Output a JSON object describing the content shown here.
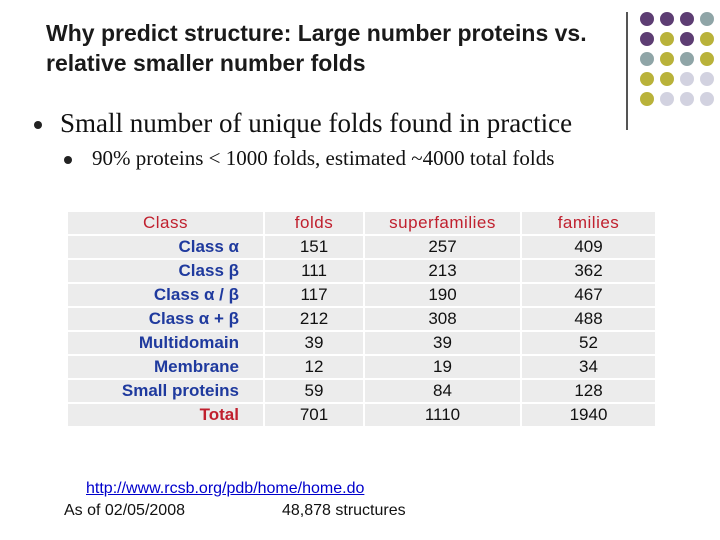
{
  "title": "Why predict structure: Large number proteins vs. relative smaller number folds",
  "bullets": {
    "level1": "Small number of unique folds found in practice",
    "level2": "90% proteins < 1000 folds, estimated ~4000 total folds"
  },
  "table": {
    "headers": [
      "Class",
      "folds",
      "superfamilies",
      "families"
    ],
    "rows": [
      {
        "class": "Class α",
        "folds": "151",
        "superfamilies": "257",
        "families": "409"
      },
      {
        "class": "Class β",
        "folds": "111",
        "superfamilies": "213",
        "families": "362"
      },
      {
        "class": "Class α / β",
        "folds": "117",
        "superfamilies": "190",
        "families": "467"
      },
      {
        "class": "Class α + β",
        "folds": "212",
        "superfamilies": "308",
        "families": "488"
      },
      {
        "class": "Multidomain",
        "folds": "39",
        "superfamilies": "39",
        "families": "52"
      },
      {
        "class": "Membrane",
        "folds": "12",
        "superfamilies": "19",
        "families": "34"
      },
      {
        "class": "Small proteins",
        "folds": "59",
        "superfamilies": "84",
        "families": "128"
      },
      {
        "class": "Total",
        "folds": "701",
        "superfamilies": "1110",
        "families": "1940"
      }
    ]
  },
  "footer": {
    "link": "http://www.rcsb.org/pdb/home/home.do",
    "as_of": "As of 02/05/2008",
    "structures": "48,878 structures"
  },
  "colors": {
    "purple": "#5d3d73",
    "teal": "#8fa5a7",
    "olive": "#b9b23a",
    "lavender": "#d2d2e0"
  }
}
